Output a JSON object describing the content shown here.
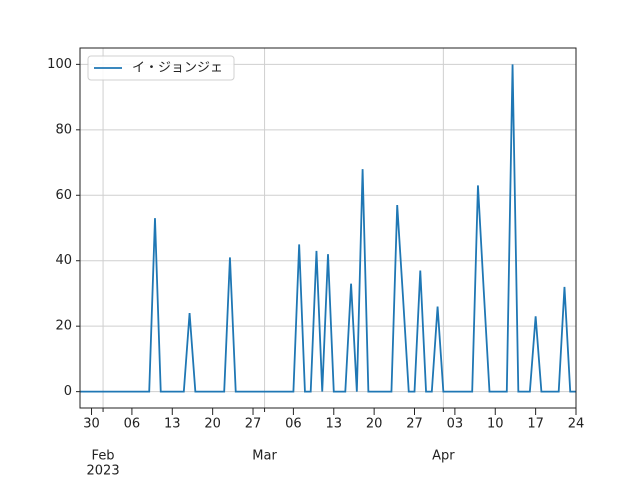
{
  "chart_data": {
    "type": "line",
    "x": [
      "2023-01-28",
      "2023-01-29",
      "2023-01-30",
      "2023-01-31",
      "2023-02-01",
      "2023-02-02",
      "2023-02-03",
      "2023-02-04",
      "2023-02-05",
      "2023-02-06",
      "2023-02-07",
      "2023-02-08",
      "2023-02-09",
      "2023-02-10",
      "2023-02-11",
      "2023-02-12",
      "2023-02-13",
      "2023-02-14",
      "2023-02-15",
      "2023-02-16",
      "2023-02-17",
      "2023-02-18",
      "2023-02-19",
      "2023-02-20",
      "2023-02-21",
      "2023-02-22",
      "2023-02-23",
      "2023-02-24",
      "2023-02-25",
      "2023-02-26",
      "2023-02-27",
      "2023-02-28",
      "2023-03-01",
      "2023-03-02",
      "2023-03-03",
      "2023-03-04",
      "2023-03-05",
      "2023-03-06",
      "2023-03-07",
      "2023-03-08",
      "2023-03-09",
      "2023-03-10",
      "2023-03-11",
      "2023-03-12",
      "2023-03-13",
      "2023-03-14",
      "2023-03-15",
      "2023-03-16",
      "2023-03-17",
      "2023-03-18",
      "2023-03-19",
      "2023-03-20",
      "2023-03-21",
      "2023-03-22",
      "2023-03-23",
      "2023-03-24",
      "2023-03-25",
      "2023-03-26",
      "2023-03-27",
      "2023-03-28",
      "2023-03-29",
      "2023-03-30",
      "2023-03-31",
      "2023-04-01",
      "2023-04-02",
      "2023-04-03",
      "2023-04-04",
      "2023-04-05",
      "2023-04-06",
      "2023-04-07",
      "2023-04-08",
      "2023-04-09",
      "2023-04-10",
      "2023-04-11",
      "2023-04-12",
      "2023-04-13",
      "2023-04-14",
      "2023-04-15",
      "2023-04-16",
      "2023-04-17",
      "2023-04-18",
      "2023-04-19",
      "2023-04-20",
      "2023-04-21",
      "2023-04-22",
      "2023-04-23",
      "2023-04-24"
    ],
    "series": [
      {
        "name": "イ・ジョンジェ",
        "color": "#1f77b4",
        "values": [
          0,
          0,
          0,
          0,
          0,
          0,
          0,
          0,
          0,
          0,
          0,
          0,
          0,
          53,
          0,
          0,
          0,
          0,
          0,
          24,
          0,
          0,
          0,
          0,
          0,
          0,
          41,
          0,
          0,
          0,
          0,
          0,
          0,
          0,
          0,
          0,
          0,
          0,
          45,
          0,
          0,
          43,
          0,
          42,
          0,
          0,
          0,
          33,
          0,
          68,
          0,
          0,
          0,
          0,
          0,
          57,
          29,
          0,
          0,
          37,
          0,
          0,
          26,
          0,
          0,
          0,
          0,
          0,
          0,
          63,
          31,
          0,
          0,
          0,
          0,
          100,
          0,
          0,
          0,
          23,
          0,
          0,
          0,
          0,
          32,
          0,
          0
        ]
      }
    ],
    "xlim": [
      "2023-01-28",
      "2023-04-24"
    ],
    "xticks": [
      {
        "value": "2023-01-30",
        "label": "30"
      },
      {
        "value": "2023-02-06",
        "label": "06"
      },
      {
        "value": "2023-02-13",
        "label": "13"
      },
      {
        "value": "2023-02-20",
        "label": "20"
      },
      {
        "value": "2023-02-27",
        "label": "27"
      },
      {
        "value": "2023-03-06",
        "label": "06"
      },
      {
        "value": "2023-03-13",
        "label": "13"
      },
      {
        "value": "2023-03-20",
        "label": "20"
      },
      {
        "value": "2023-03-27",
        "label": "27"
      },
      {
        "value": "2023-04-03",
        "label": "03"
      },
      {
        "value": "2023-04-10",
        "label": "10"
      },
      {
        "value": "2023-04-17",
        "label": "17"
      },
      {
        "value": "2023-04-24",
        "label": "24"
      }
    ],
    "month_ticks": [
      {
        "value": "2023-02-01",
        "label": "Feb"
      },
      {
        "value": "2023-03-01",
        "label": "Mar"
      },
      {
        "value": "2023-04-01",
        "label": "Apr"
      }
    ],
    "year": "2023",
    "ylim": [
      -5,
      105
    ],
    "yticks": [
      0,
      20,
      40,
      60,
      80,
      100
    ],
    "grid": true,
    "legend": "upper left"
  }
}
